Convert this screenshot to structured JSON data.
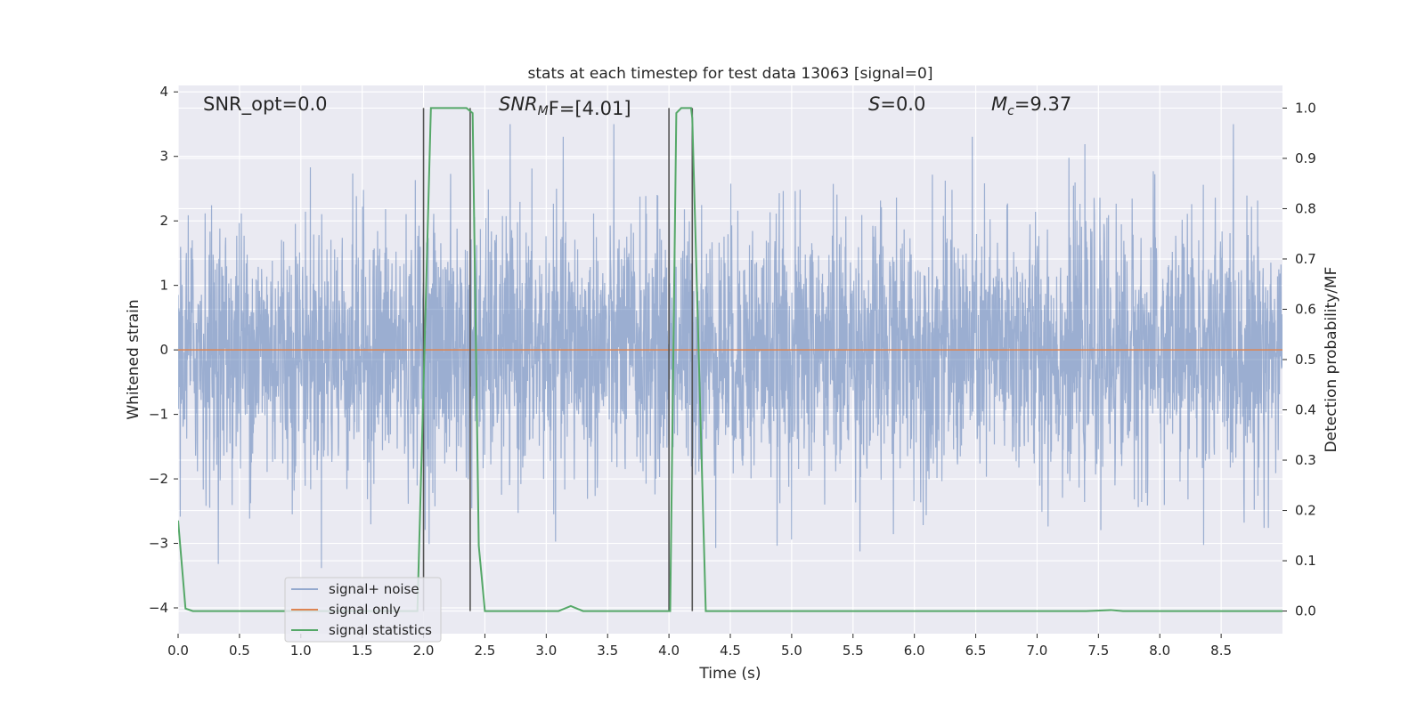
{
  "chart_data": {
    "type": "line",
    "title": "stats at each timestep for test data 13063 [signal=0]",
    "xlabel": "Time (s)",
    "ylabel": "Whitened strain",
    "y2label": "Detection probability/MF",
    "xlim": [
      0,
      9.0
    ],
    "ylim": [
      -4.4,
      4.1
    ],
    "y2lim": [
      -0.045,
      1.045
    ],
    "xticks": [
      0.0,
      0.5,
      1.0,
      1.5,
      2.0,
      2.5,
      3.0,
      3.5,
      4.0,
      4.5,
      5.0,
      5.5,
      6.0,
      6.5,
      7.0,
      7.5,
      8.0,
      8.5
    ],
    "xtick_labels": [
      "0.0",
      "0.5",
      "1.0",
      "1.5",
      "2.0",
      "2.5",
      "3.0",
      "3.5",
      "4.0",
      "4.5",
      "5.0",
      "5.5",
      "6.0",
      "6.5",
      "7.0",
      "7.5",
      "8.0",
      "8.5"
    ],
    "yticks": [
      -4,
      -3,
      -2,
      -1,
      0,
      1,
      2,
      3,
      4
    ],
    "ytick_labels": [
      "−4",
      "−3",
      "−2",
      "−1",
      "0",
      "1",
      "2",
      "3",
      "4"
    ],
    "y2ticks": [
      0.0,
      0.1,
      0.2,
      0.3,
      0.4,
      0.5,
      0.6,
      0.7,
      0.8,
      0.9,
      1.0
    ],
    "y2tick_labels": [
      "0.0",
      "0.1",
      "0.2",
      "0.3",
      "0.4",
      "0.5",
      "0.6",
      "0.7",
      "0.8",
      "0.9",
      "1.0"
    ],
    "grid": true,
    "legend_position": "lower-left",
    "annotations": {
      "snr_opt": "SNR_opt=0.0",
      "snr_mf_prefix": "SNR",
      "snr_mf_sub": "M",
      "snr_mf_suffix": "F=[4.01]",
      "s_prefix": "S",
      "s_suffix": "=0.0",
      "mc_prefix": "M",
      "mc_sub": "c",
      "mc_suffix": "=9.37"
    },
    "vertical_markers_x": [
      2.0,
      2.38,
      4.0,
      4.19
    ],
    "series": [
      {
        "name": "signal+ noise",
        "color": "#4c72b0",
        "axis": "left",
        "style": "noise",
        "noise_sigma": 1.0,
        "noise_peak_range": [
          -3.7,
          3.5
        ]
      },
      {
        "name": "signal only",
        "color": "#dd8452",
        "axis": "left",
        "x": [
          0.0,
          9.0
        ],
        "y": [
          0.0,
          0.0
        ]
      },
      {
        "name": "signal statistics",
        "color": "#55a868",
        "axis": "right",
        "x": [
          0.0,
          0.06,
          0.12,
          1.4,
          1.85,
          1.95,
          2.0,
          2.06,
          2.1,
          2.2,
          2.3,
          2.35,
          2.4,
          2.45,
          2.5,
          3.1,
          3.2,
          3.3,
          4.0,
          4.01,
          4.06,
          4.1,
          4.18,
          4.19,
          4.3,
          4.8,
          7.4,
          7.6,
          7.7,
          8.0,
          9.0
        ],
        "y": [
          0.18,
          0.005,
          0.0,
          0.0,
          0.0,
          0.0,
          0.45,
          1.0,
          1.0,
          1.0,
          1.0,
          1.0,
          0.99,
          0.13,
          0.0,
          0.0,
          0.01,
          0.0,
          0.0,
          0.0,
          0.99,
          1.0,
          1.0,
          0.98,
          0.0,
          0.0,
          0.0,
          0.002,
          0.0,
          0.0,
          0.0
        ]
      }
    ]
  }
}
